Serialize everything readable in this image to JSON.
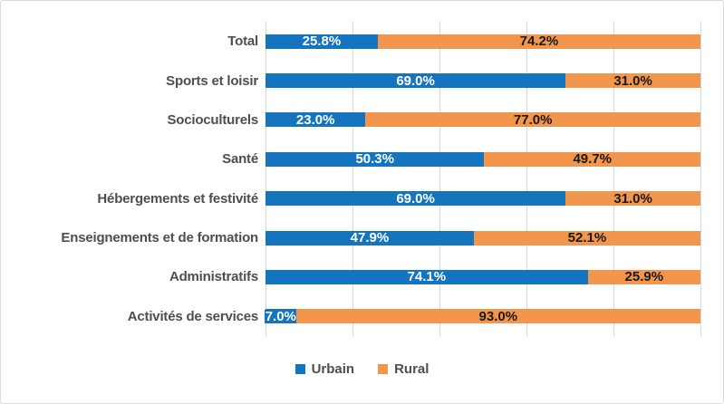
{
  "chart_data": {
    "type": "bar",
    "orientation": "horizontal",
    "stacked": true,
    "title": "",
    "xlabel": "",
    "ylabel": "",
    "xlim": [
      0,
      100
    ],
    "grid": true,
    "gridline_interval_pct": 20,
    "legend_position": "bottom",
    "categories": [
      "Total",
      "Sports et loisir",
      "Socioculturels",
      "Santé",
      "Hébergements et festivité",
      "Enseignements et de formation",
      "Administratifs",
      "Activités de services"
    ],
    "series": [
      {
        "name": "Urbain",
        "color": "#1474be",
        "values": [
          25.8,
          69.0,
          23.0,
          50.3,
          69.0,
          47.9,
          74.1,
          7.0
        ],
        "labels": [
          "25.8%",
          "69.0%",
          "23.0%",
          "50.3%",
          "69.0%",
          "47.9%",
          "74.1%",
          "7.0%"
        ]
      },
      {
        "name": "Rural",
        "color": "#f2954d",
        "values": [
          74.2,
          31.0,
          77.0,
          49.7,
          31.0,
          52.1,
          25.9,
          93.0
        ],
        "labels": [
          "74.2%",
          "31.0%",
          "77.0%",
          "49.7%",
          "31.0%",
          "52.1%",
          "25.9%",
          "93.0%"
        ]
      }
    ]
  },
  "colors": {
    "urbain": "#1474be",
    "rural": "#f2954d",
    "gridline": "#d9d9d9",
    "frame_border": "#dbdbdb",
    "category_text": "#4e4e4e",
    "label_on_blue": "#ffffff",
    "label_on_orange": "#1a1a1a",
    "background": "#ffffff"
  }
}
